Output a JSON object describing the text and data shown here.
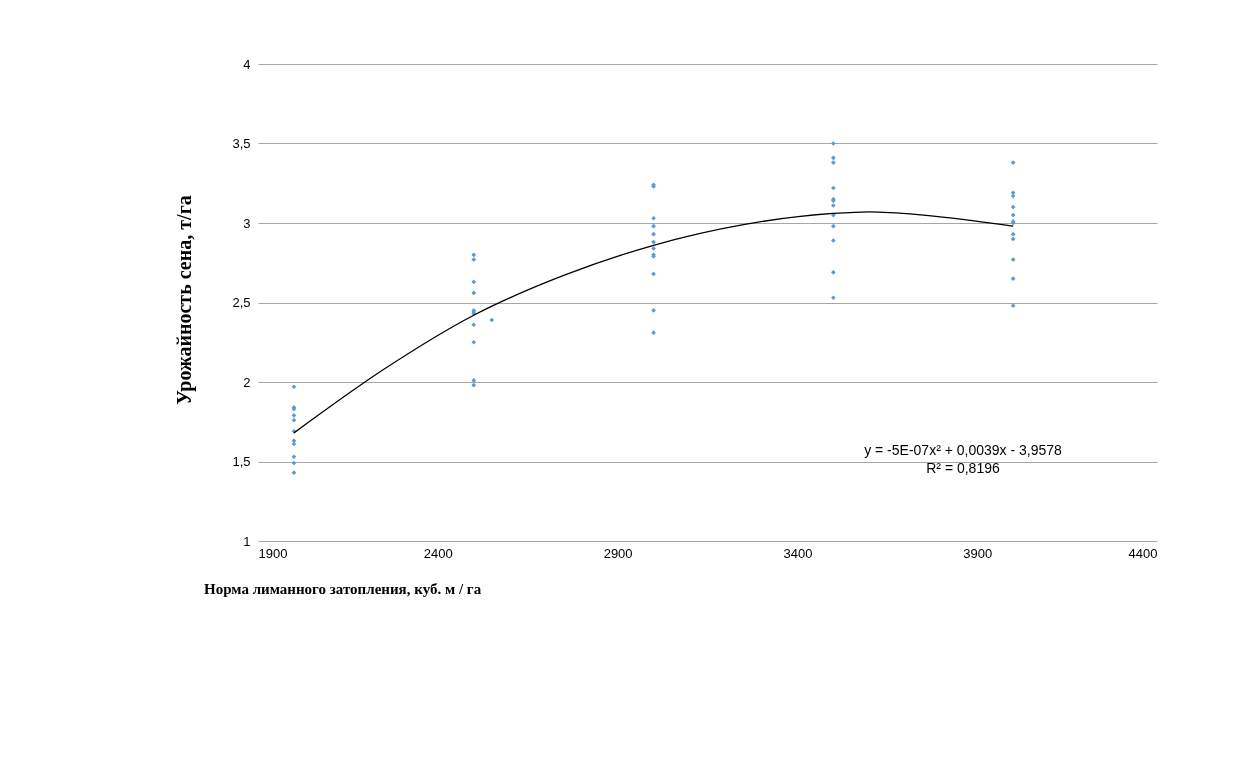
{
  "chart_data": {
    "type": "scatter",
    "xlabel": "Норма лиманного затопления, куб. м / га",
    "ylabel": "Урожайность сена, т/га",
    "xlim": [
      1900,
      4400
    ],
    "xticks": [
      1900,
      2400,
      2900,
      3400,
      3900,
      4400
    ],
    "ylim": [
      1,
      4
    ],
    "yticks": [
      {
        "value": 1,
        "label": "1"
      },
      {
        "value": 1.5,
        "label": "1,5"
      },
      {
        "value": 2,
        "label": "2"
      },
      {
        "value": 2.5,
        "label": "2,5"
      },
      {
        "value": 3,
        "label": "3"
      },
      {
        "value": 3.5,
        "label": "3,5"
      },
      {
        "value": 4,
        "label": "4"
      }
    ],
    "grid": "y",
    "marker": "diamond",
    "annotations": [
      "y = -5E-07x² + 0,0039x - 3,9578",
      "R² = 0,8196"
    ],
    "series": [
      {
        "color": "#5b9bd5",
        "x": [
          2000,
          2000,
          2000,
          2000,
          2000,
          2000,
          2000,
          2000,
          2000,
          2000,
          2000,
          2500,
          2500,
          2500,
          2500,
          2500,
          2500,
          2500,
          2500,
          2500,
          2500,
          2500,
          2550,
          3000,
          3000,
          3000,
          3000,
          3000,
          3000,
          3000,
          3000,
          3000,
          3000,
          3000,
          3000,
          3500,
          3500,
          3500,
          3500,
          3500,
          3500,
          3500,
          3500,
          3500,
          3500,
          3500,
          3500,
          4000,
          4000,
          4000,
          4000,
          4000,
          4000,
          4000,
          4000,
          4000,
          4000,
          4000,
          4000
        ],
        "values": [
          1.97,
          1.84,
          1.83,
          1.79,
          1.76,
          1.69,
          1.63,
          1.61,
          1.53,
          1.49,
          1.43,
          2.8,
          2.77,
          2.63,
          2.56,
          2.45,
          2.44,
          2.43,
          2.36,
          2.25,
          2.01,
          1.98,
          2.39,
          3.24,
          3.23,
          3.03,
          2.98,
          2.93,
          2.88,
          2.84,
          2.8,
          2.79,
          2.68,
          2.45,
          2.31,
          3.5,
          3.41,
          3.38,
          3.22,
          3.15,
          3.14,
          3.11,
          3.05,
          2.98,
          2.89,
          2.69,
          2.53,
          3.38,
          3.19,
          3.17,
          3.1,
          3.05,
          3.01,
          3,
          2.93,
          2.9,
          2.77,
          2.65,
          2.48
        ]
      },
      {
        "type": "line",
        "marker": "none",
        "color": "#000000",
        "x": [
          2000,
          2250,
          2500,
          2750,
          3000,
          3250,
          3500,
          3600,
          3750,
          4000
        ],
        "values": [
          1.68,
          2.08,
          2.42,
          2.67,
          2.86,
          2.99,
          3.06,
          3.07,
          3.05,
          2.98
        ]
      }
    ]
  }
}
